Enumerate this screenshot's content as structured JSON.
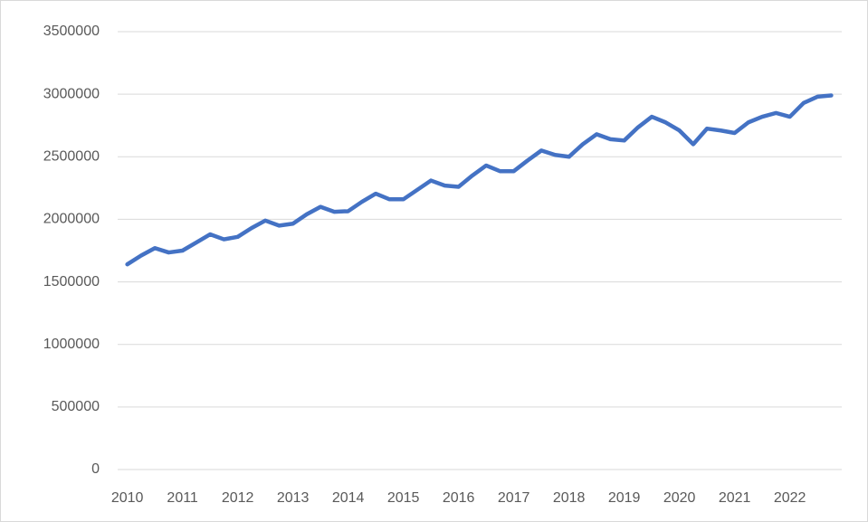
{
  "chart_data": {
    "type": "line",
    "categories": [
      "2010",
      null,
      null,
      null,
      "2011",
      null,
      null,
      null,
      "2012",
      null,
      null,
      null,
      "2013",
      null,
      null,
      null,
      "2014",
      null,
      null,
      null,
      "2015",
      null,
      null,
      null,
      "2016",
      null,
      null,
      null,
      "2017",
      null,
      null,
      null,
      "2018",
      null,
      null,
      null,
      "2019",
      null,
      null,
      null,
      "2020",
      null,
      null,
      null,
      "2021",
      null,
      null,
      null,
      "2022",
      null,
      null,
      null
    ],
    "series": [
      {
        "color": "#4472c4",
        "values": [
          1640000,
          1710000,
          1770000,
          1735000,
          1750000,
          1815000,
          1880000,
          1840000,
          1860000,
          1930000,
          1990000,
          1950000,
          1965000,
          2040000,
          2100000,
          2060000,
          2065000,
          2140000,
          2205000,
          2160000,
          2160000,
          2235000,
          2310000,
          2270000,
          2260000,
          2350000,
          2430000,
          2385000,
          2385000,
          2470000,
          2550000,
          2515000,
          2500000,
          2600000,
          2680000,
          2640000,
          2630000,
          2735000,
          2820000,
          2775000,
          2710000,
          2600000,
          2725000,
          2710000,
          2690000,
          2775000,
          2820000,
          2850000,
          2820000,
          2930000,
          2980000,
          2990000
        ]
      }
    ],
    "ylim": [
      0,
      3500000
    ],
    "yticks": [
      0,
      500000,
      1000000,
      1500000,
      2000000,
      2500000,
      3000000,
      3500000
    ],
    "grid": true
  }
}
